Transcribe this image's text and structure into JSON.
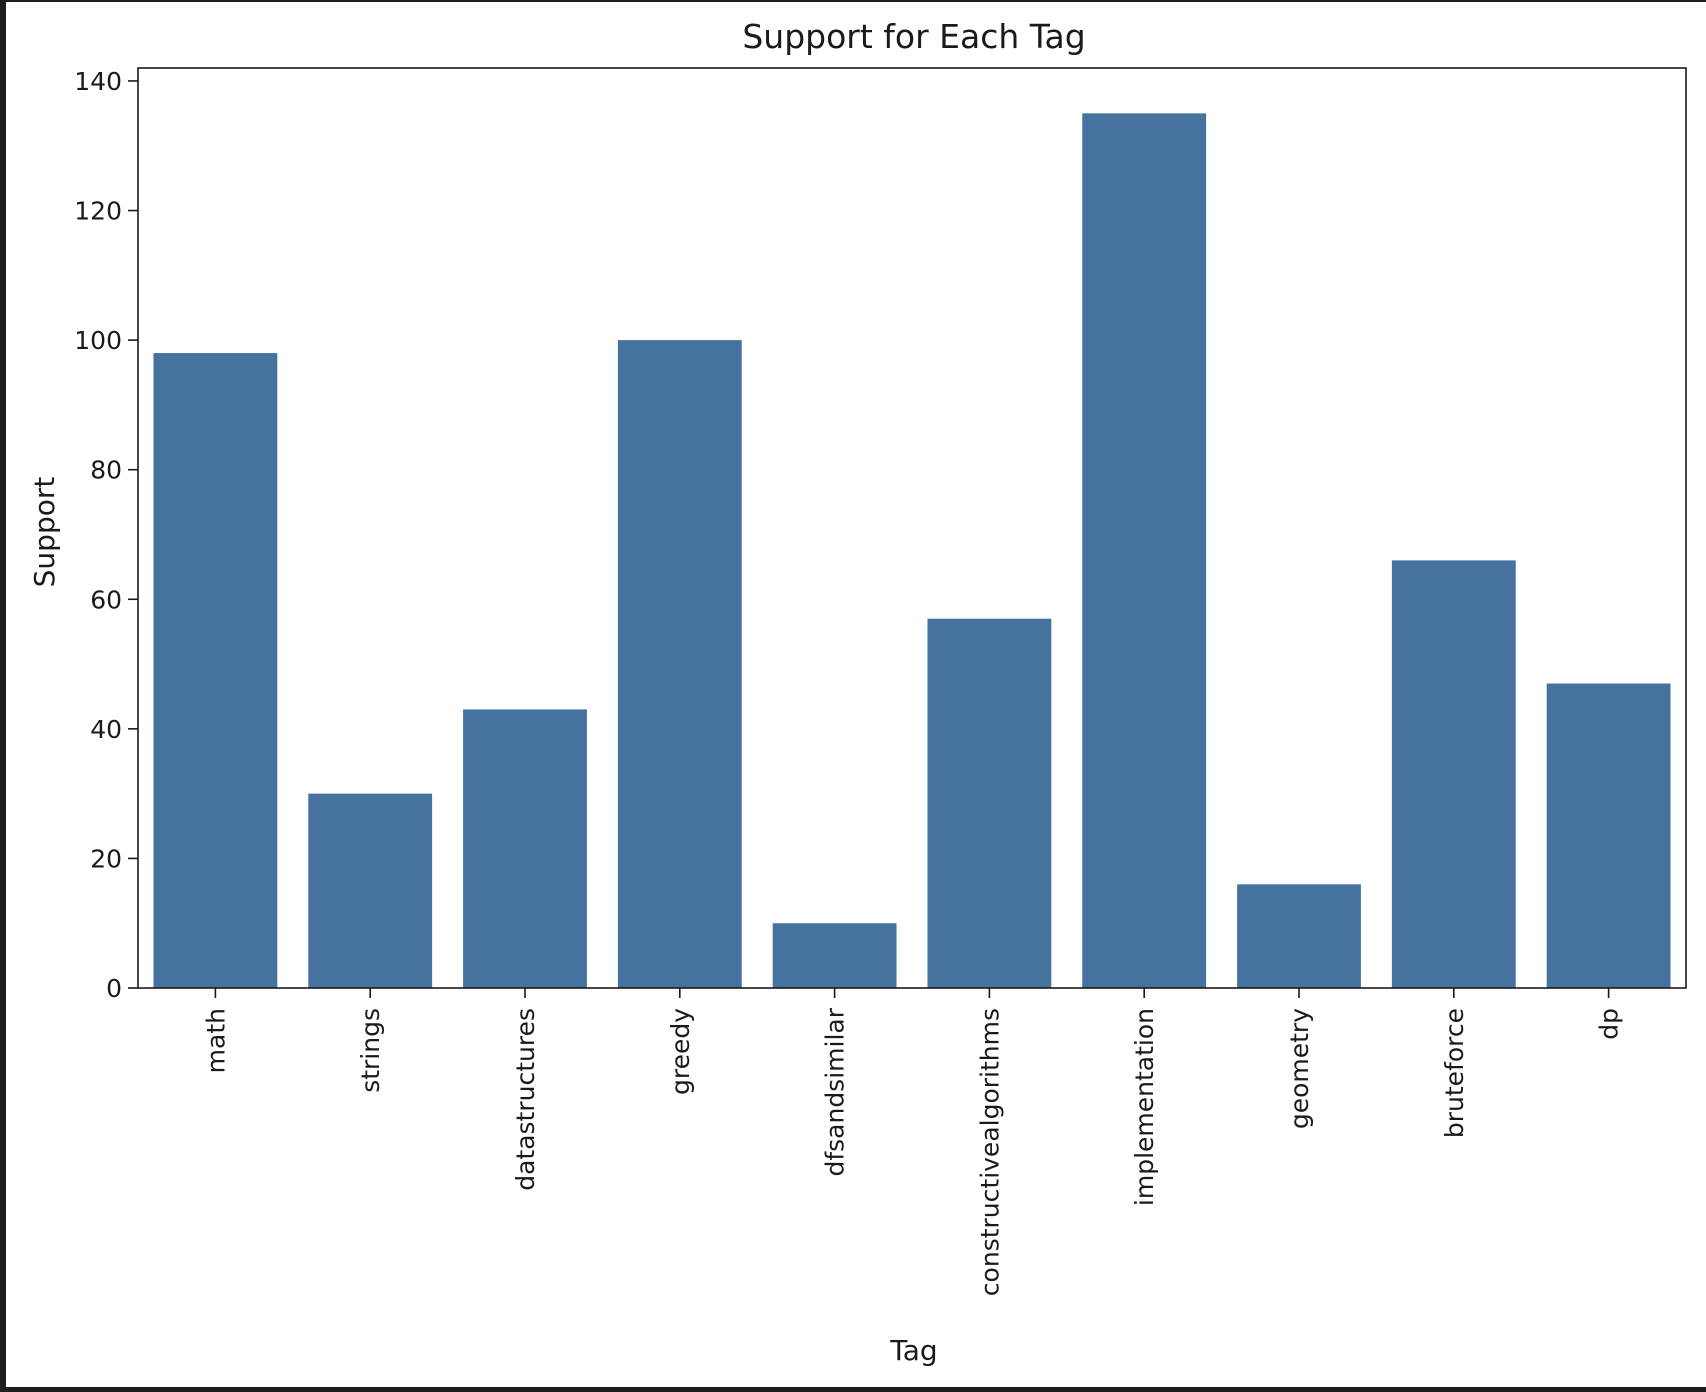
{
  "chart_data": {
    "type": "bar",
    "title": "Support for Each Tag",
    "xlabel": "Tag",
    "ylabel": "Support",
    "categories": [
      "math",
      "strings",
      "datastructures",
      "greedy",
      "dfsandsimilar",
      "constructivealgorithms",
      "implementation",
      "geometry",
      "bruteforce",
      "dp"
    ],
    "values": [
      98,
      30,
      43,
      100,
      10,
      57,
      135,
      16,
      66,
      47
    ],
    "ylim": [
      0,
      142
    ],
    "yticks": [
      0,
      20,
      40,
      60,
      80,
      100,
      120,
      140
    ],
    "bar_color": "#4672a0",
    "grid": false,
    "legend": "none"
  }
}
